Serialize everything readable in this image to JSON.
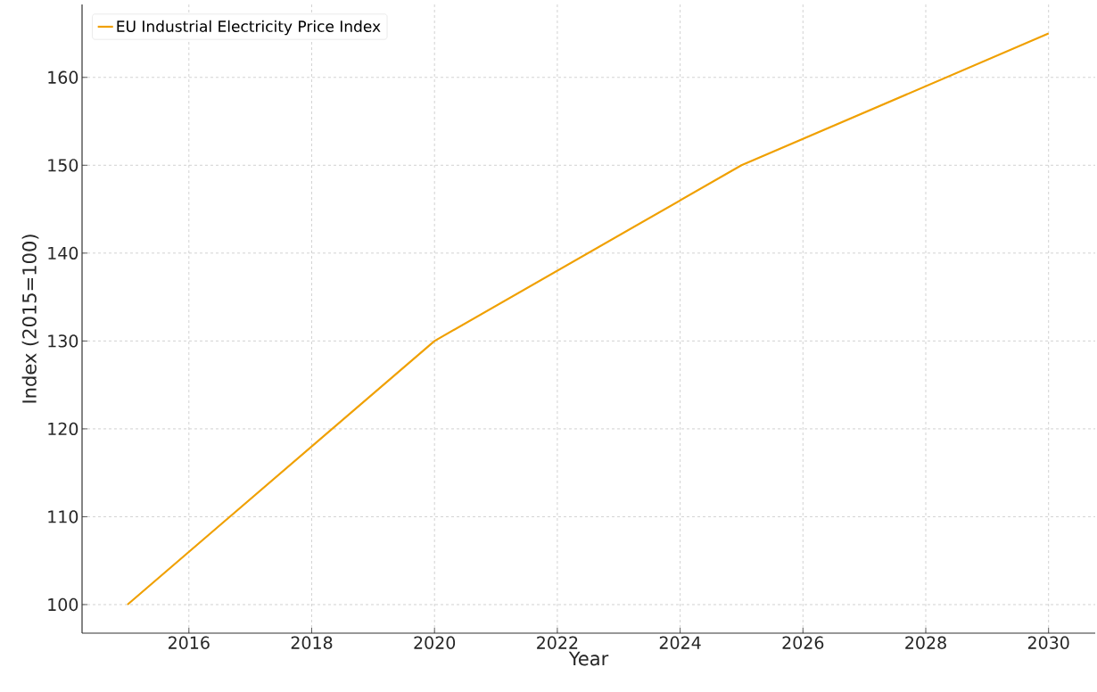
{
  "chart_data": {
    "type": "line",
    "xlabel": "Year",
    "ylabel": "Index (2015=100)",
    "x": [
      2015,
      2020,
      2025,
      2030
    ],
    "series": [
      {
        "name": "EU Industrial Electricity Price Index",
        "color": "#f0a000",
        "values": [
          100,
          130,
          150,
          165
        ]
      }
    ],
    "xlim": [
      2014.26,
      2030.76
    ],
    "ylim": [
      96.75,
      168.3
    ],
    "xticks": [
      2016,
      2018,
      2020,
      2022,
      2024,
      2026,
      2028,
      2030
    ],
    "yticks": [
      100,
      110,
      120,
      130,
      140,
      150,
      160
    ],
    "grid": true,
    "legend": "top left",
    "marker": "none",
    "line_style": "solid"
  }
}
